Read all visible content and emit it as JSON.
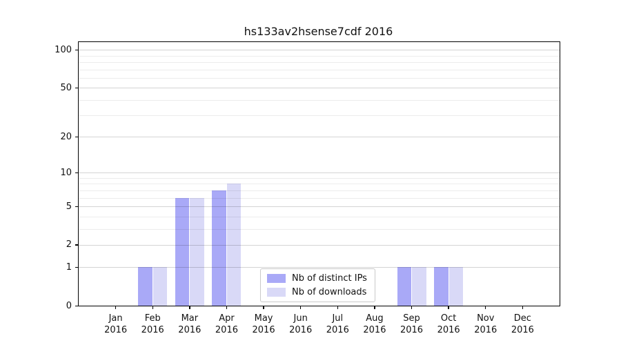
{
  "chart_data": {
    "type": "bar",
    "title": "hs133av2hsense7cdf 2016",
    "year": "2016",
    "categories": [
      "Jan",
      "Feb",
      "Mar",
      "Apr",
      "May",
      "Jun",
      "Jul",
      "Aug",
      "Sep",
      "Oct",
      "Nov",
      "Dec"
    ],
    "series": [
      {
        "key": "ips",
        "name": "Nb of distinct IPs",
        "color": "#a9a9f7",
        "values": [
          0,
          1,
          6,
          7,
          0,
          0,
          0,
          0,
          1,
          1,
          0,
          0
        ]
      },
      {
        "key": "downloads",
        "name": "Nb of downloads",
        "color": "#d9d9f7",
        "values": [
          0,
          1,
          6,
          8,
          0,
          0,
          0,
          0,
          1,
          1,
          0,
          0
        ]
      }
    ],
    "y_axis": {
      "scale": "log10(1+v)",
      "tick_values": [
        0,
        1,
        2,
        5,
        10,
        20,
        50,
        100
      ],
      "tick_labels": [
        "0",
        "1",
        "2",
        "5",
        "10",
        "20",
        "50",
        "100"
      ],
      "major_grid_values": [
        1,
        2,
        5,
        10,
        20,
        50,
        100
      ],
      "minor_grid_values": [
        3,
        4,
        6,
        7,
        8,
        9,
        30,
        40,
        60,
        70,
        80,
        90
      ],
      "ylim": [
        0,
        115
      ]
    },
    "grid": true,
    "legend_position": "bottom-center",
    "background_color": "#ffffff",
    "text_color": "#111111"
  }
}
